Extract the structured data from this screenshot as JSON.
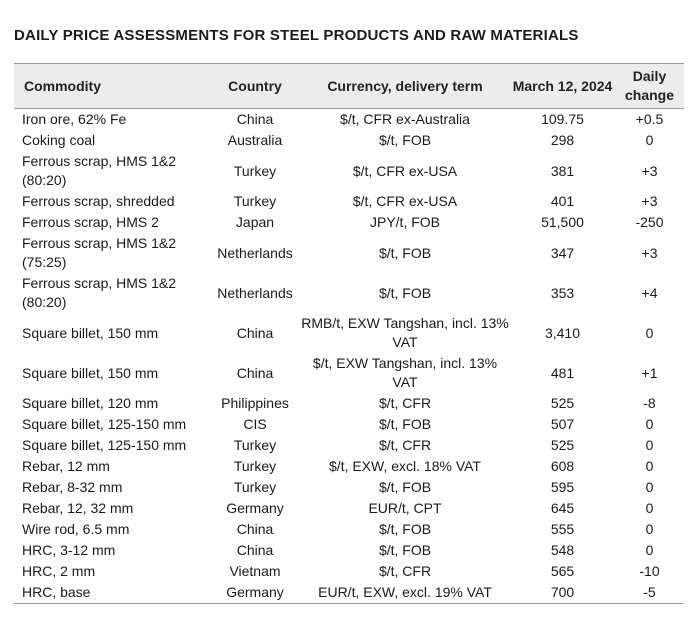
{
  "title": "DAILY PRICE ASSESSMENTS FOR STEEL PRODUCTS AND RAW MATERIALS",
  "header": {
    "commodity": "Commodity",
    "country": "Country",
    "currency": "Currency, delivery term",
    "date": "March 12, 2024",
    "change": "Daily change"
  },
  "rows": [
    {
      "commodity": "Iron ore, 62% Fe",
      "country": "China",
      "term": "$/t, CFR ex-Australia",
      "price": "109.75",
      "change": "+0.5"
    },
    {
      "commodity": "Coking coal",
      "country": "Australia",
      "term": "$/t, FOB",
      "price": "298",
      "change": "0"
    },
    {
      "commodity": "Ferrous scrap, HMS 1&2 (80:20)",
      "country": "Turkey",
      "term": "$/t, CFR ex-USA",
      "price": "381",
      "change": "+3"
    },
    {
      "commodity": "Ferrous scrap, shredded",
      "country": "Turkey",
      "term": "$/t, CFR ex-USA",
      "price": "401",
      "change": "+3"
    },
    {
      "commodity": "Ferrous scrap, HMS 2",
      "country": "Japan",
      "term": "JPY/t, FOB",
      "price": "51,500",
      "change": "-250"
    },
    {
      "commodity": "Ferrous scrap, HMS 1&2 (75:25)",
      "country": "Netherlands",
      "term": "$/t, FOB",
      "price": "347",
      "change": "+3"
    },
    {
      "commodity": "Ferrous scrap, HMS 1&2 (80:20)",
      "country": "Netherlands",
      "term": "$/t, FOB",
      "price": "353",
      "change": "+4"
    },
    {
      "commodity": "Square billet, 150 mm",
      "country": "China",
      "term": "RMB/t, EXW Tangshan, incl. 13% VAT",
      "price": "3,410",
      "change": "0"
    },
    {
      "commodity": "Square billet, 150 mm",
      "country": "China",
      "term": "$/t, EXW Tangshan, incl. 13% VAT",
      "price": "481",
      "change": "+1"
    },
    {
      "commodity": "Square billet, 120 mm",
      "country": "Philippines",
      "term": "$/t, CFR",
      "price": "525",
      "change": "-8"
    },
    {
      "commodity": "Square billet, 125-150 mm",
      "country": "CIS",
      "term": "$/t, FOB",
      "price": "507",
      "change": "0"
    },
    {
      "commodity": "Square billet, 125-150 mm",
      "country": "Turkey",
      "term": "$/t, CFR",
      "price": "525",
      "change": "0"
    },
    {
      "commodity": "Rebar, 12 mm",
      "country": "Turkey",
      "term": "$/t, EXW, excl. 18% VAT",
      "price": "608",
      "change": "0"
    },
    {
      "commodity": "Rebar, 8-32 mm",
      "country": "Turkey",
      "term": "$/t, FOB",
      "price": "595",
      "change": "0"
    },
    {
      "commodity": "Rebar, 12, 32 mm",
      "country": "Germany",
      "term": "EUR/t, CPT",
      "price": "645",
      "change": "0"
    },
    {
      "commodity": "Wire rod, 6.5 mm",
      "country": "China",
      "term": "$/t, FOB",
      "price": "555",
      "change": "0"
    },
    {
      "commodity": "HRC, 3-12 mm",
      "country": "China",
      "term": "$/t, FOB",
      "price": "548",
      "change": "0"
    },
    {
      "commodity": "HRC, 2 mm",
      "country": "Vietnam",
      "term": "$/t, CFR",
      "price": "565",
      "change": "-10"
    },
    {
      "commodity": "HRC, base",
      "country": "Germany",
      "term": "EUR/t, EXW, excl. 19% VAT",
      "price": "700",
      "change": "-5"
    }
  ]
}
